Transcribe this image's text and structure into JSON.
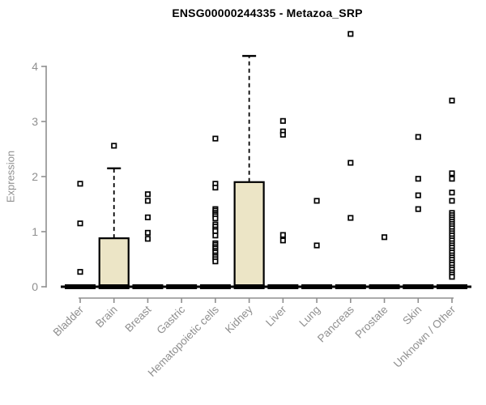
{
  "title": "ENSG00000244335 - Metazoa_SRP",
  "colors": {
    "background": "#ffffff",
    "axis": "#8f8f8f",
    "tick_label": "#8f8f8f",
    "title_text": "#000000",
    "box_fill": "#ece5c6",
    "box_border": "#000000",
    "outlier_fill": "#ffffff",
    "outlier_border": "#000000"
  },
  "chart_data": {
    "type": "boxplot",
    "title": "ENSG00000244335 - Metazoa_SRP",
    "xlabel": "",
    "ylabel": "Expression",
    "ylim": [
      0,
      4
    ],
    "y_ticks": [
      0,
      1,
      2,
      3,
      4
    ],
    "grid": false,
    "legend": "none",
    "marker": "open-square",
    "categories": [
      "Bladder",
      "Brain",
      "Breast",
      "Gastric",
      "Hematopoietic cells",
      "Kidney",
      "Liver",
      "Lung",
      "Pancreas",
      "Prostate",
      "Skin",
      "Unknown / Other"
    ],
    "series": [
      {
        "category": "Bladder",
        "q1": 0,
        "median": 0,
        "q3": 0,
        "whisker_low": 0,
        "whisker_high": 0,
        "outliers": [
          1.87,
          1.15,
          0.27
        ]
      },
      {
        "category": "Brain",
        "q1": 0,
        "median": 0,
        "q3": 0.88,
        "whisker_low": 0,
        "whisker_high": 2.15,
        "outliers": [
          2.56
        ]
      },
      {
        "category": "Breast",
        "q1": 0,
        "median": 0,
        "q3": 0,
        "whisker_low": 0,
        "whisker_high": 0,
        "outliers": [
          1.68,
          1.56,
          1.26,
          0.98,
          0.87
        ]
      },
      {
        "category": "Gastric",
        "q1": 0,
        "median": 0,
        "q3": 0,
        "whisker_low": 0,
        "whisker_high": 0,
        "outliers": []
      },
      {
        "category": "Hematopoietic cells",
        "q1": 0,
        "median": 0,
        "q3": 0,
        "whisker_low": 0,
        "whisker_high": 0,
        "outliers": [
          2.69,
          1.87,
          1.8,
          1.41,
          1.38,
          1.34,
          1.31,
          1.28,
          1.24,
          1.13,
          1.09,
          1.04,
          1.01,
          0.93,
          0.79,
          0.76,
          0.72,
          0.69,
          0.65,
          0.62,
          0.57,
          0.54,
          0.5,
          0.46
        ]
      },
      {
        "category": "Kidney",
        "q1": 0,
        "median": 0,
        "q3": 1.9,
        "whisker_low": 0,
        "whisker_high": 4.19,
        "outliers": []
      },
      {
        "category": "Liver",
        "q1": 0,
        "median": 0,
        "q3": 0,
        "whisker_low": 0,
        "whisker_high": 0,
        "outliers": [
          3.01,
          2.82,
          2.76,
          0.94,
          0.84
        ]
      },
      {
        "category": "Lung",
        "q1": 0,
        "median": 0,
        "q3": 0,
        "whisker_low": 0,
        "whisker_high": 0,
        "outliers": [
          1.56,
          0.75
        ]
      },
      {
        "category": "Pancreas",
        "q1": 0,
        "median": 0,
        "q3": 0,
        "whisker_low": 0,
        "whisker_high": 0,
        "outliers": [
          4.59,
          2.25,
          1.25
        ]
      },
      {
        "category": "Prostate",
        "q1": 0,
        "median": 0,
        "q3": 0,
        "whisker_low": 0,
        "whisker_high": 0,
        "outliers": [
          0.9
        ]
      },
      {
        "category": "Skin",
        "q1": 0,
        "median": 0,
        "q3": 0,
        "whisker_low": 0,
        "whisker_high": 0,
        "outliers": [
          2.72,
          1.96,
          1.66,
          1.41
        ]
      },
      {
        "category": "Unknown / Other",
        "q1": 0,
        "median": 0,
        "q3": 0,
        "whisker_low": 0,
        "whisker_high": 0,
        "outliers": [
          3.38,
          2.06,
          1.96,
          1.71,
          1.56,
          1.34,
          1.3,
          1.26,
          1.22,
          1.18,
          1.14,
          1.1,
          1.06,
          1.01,
          0.97,
          0.93,
          0.88,
          0.84,
          0.79,
          0.75,
          0.71,
          0.66,
          0.62,
          0.57,
          0.53,
          0.49,
          0.44,
          0.4,
          0.35,
          0.31,
          0.26,
          0.22,
          0.18
        ]
      }
    ]
  }
}
